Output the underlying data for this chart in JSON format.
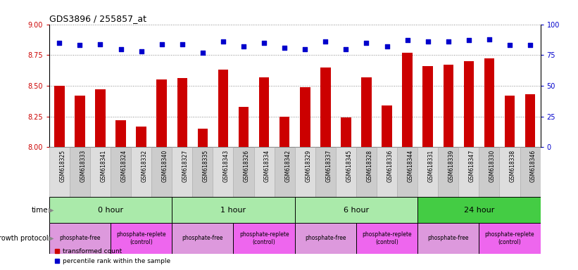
{
  "title": "GDS3896 / 255857_at",
  "samples": [
    "GSM618325",
    "GSM618333",
    "GSM618341",
    "GSM618324",
    "GSM618332",
    "GSM618340",
    "GSM618327",
    "GSM618335",
    "GSM618343",
    "GSM618326",
    "GSM618334",
    "GSM618342",
    "GSM618329",
    "GSM618337",
    "GSM618345",
    "GSM618328",
    "GSM618336",
    "GSM618344",
    "GSM618331",
    "GSM618339",
    "GSM618347",
    "GSM618330",
    "GSM618338",
    "GSM618346"
  ],
  "transformed_count": [
    8.5,
    8.42,
    8.47,
    8.22,
    8.17,
    8.55,
    8.56,
    8.15,
    8.63,
    8.33,
    8.57,
    8.25,
    8.49,
    8.65,
    8.24,
    8.57,
    8.34,
    8.77,
    8.66,
    8.67,
    8.7,
    8.72,
    8.42,
    8.43
  ],
  "percentile_rank": [
    85,
    83,
    84,
    80,
    78,
    84,
    84,
    77,
    86,
    82,
    85,
    81,
    80,
    86,
    80,
    85,
    82,
    87,
    86,
    86,
    87,
    88,
    83,
    83
  ],
  "ylim_left": [
    8.0,
    9.0
  ],
  "ylim_right": [
    0,
    100
  ],
  "yticks_left": [
    8.0,
    8.25,
    8.5,
    8.75,
    9.0
  ],
  "yticks_right": [
    0,
    25,
    50,
    75,
    100
  ],
  "bar_color": "#cc0000",
  "dot_color": "#0000cc",
  "time_groups": [
    {
      "label": "0 hour",
      "start": 0,
      "end": 6,
      "color": "#aaeaaa"
    },
    {
      "label": "1 hour",
      "start": 6,
      "end": 12,
      "color": "#aaeaaa"
    },
    {
      "label": "6 hour",
      "start": 12,
      "end": 18,
      "color": "#aaeaaa"
    },
    {
      "label": "24 hour",
      "start": 18,
      "end": 24,
      "color": "#44cc44"
    }
  ],
  "protocol_groups": [
    {
      "label": "phosphate-free",
      "start": 0,
      "end": 3,
      "color": "#dd99dd"
    },
    {
      "label": "phosphate-replete\n(control)",
      "start": 3,
      "end": 6,
      "color": "#ee66ee"
    },
    {
      "label": "phosphate-free",
      "start": 6,
      "end": 9,
      "color": "#dd99dd"
    },
    {
      "label": "phosphate-replete\n(control)",
      "start": 9,
      "end": 12,
      "color": "#ee66ee"
    },
    {
      "label": "phosphate-free",
      "start": 12,
      "end": 15,
      "color": "#dd99dd"
    },
    {
      "label": "phosphate-replete\n(control)",
      "start": 15,
      "end": 18,
      "color": "#ee66ee"
    },
    {
      "label": "phosphate-free",
      "start": 18,
      "end": 21,
      "color": "#dd99dd"
    },
    {
      "label": "phosphate-replete\n(control)",
      "start": 21,
      "end": 24,
      "color": "#ee66ee"
    }
  ],
  "bg_color": "#ffffff",
  "grid_color": "#888888",
  "tick_color_left": "#cc0000",
  "tick_color_right": "#0000cc",
  "sample_bg_light": "#dddddd",
  "sample_bg_dark": "#cccccc"
}
